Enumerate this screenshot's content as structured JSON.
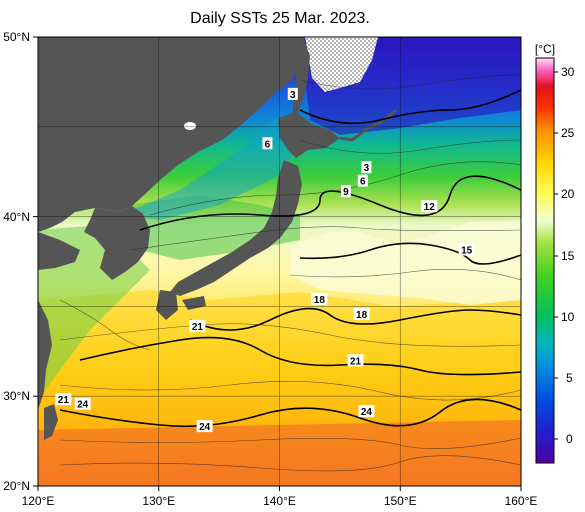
{
  "title": "Daily SSTs 25 Mar. 2023.",
  "colorbar": {
    "unit": "[°C]",
    "ticks": [
      "30",
      "25",
      "20",
      "15",
      "10",
      "5",
      "0"
    ]
  },
  "axes": {
    "lat_labels": [
      "50°N",
      "40°N",
      "30°N",
      "20°N"
    ],
    "lon_labels": [
      "120°E",
      "130°E",
      "140°E",
      "150°E",
      "160°E"
    ]
  },
  "contour_labels": [
    {
      "text": "3",
      "lon": 141.1,
      "lat": 46.2
    },
    {
      "text": "6",
      "lon": 139.0,
      "lat": 42.9
    },
    {
      "text": "3",
      "lon": 147.2,
      "lat": 41.3
    },
    {
      "text": "6",
      "lon": 146.9,
      "lat": 40.4
    },
    {
      "text": "9",
      "lon": 145.5,
      "lat": 39.7
    },
    {
      "text": "12",
      "lon": 152.4,
      "lat": 38.7
    },
    {
      "text": "15",
      "lon": 155.5,
      "lat": 35.8
    },
    {
      "text": "18",
      "lon": 143.3,
      "lat": 32.5
    },
    {
      "text": "18",
      "lon": 146.8,
      "lat": 31.5
    },
    {
      "text": "21",
      "lon": 133.2,
      "lat": 30.7
    },
    {
      "text": "21",
      "lon": 146.3,
      "lat": 28.4
    },
    {
      "text": "21",
      "lon": 122.1,
      "lat": 25.8
    },
    {
      "text": "24",
      "lon": 123.7,
      "lat": 25.5
    },
    {
      "text": "24",
      "lon": 147.2,
      "lat": 25.0
    },
    {
      "text": "24",
      "lon": 133.8,
      "lat": 24.0
    }
  ],
  "colors": {
    "land": "#555555",
    "frame": "#000000"
  }
}
